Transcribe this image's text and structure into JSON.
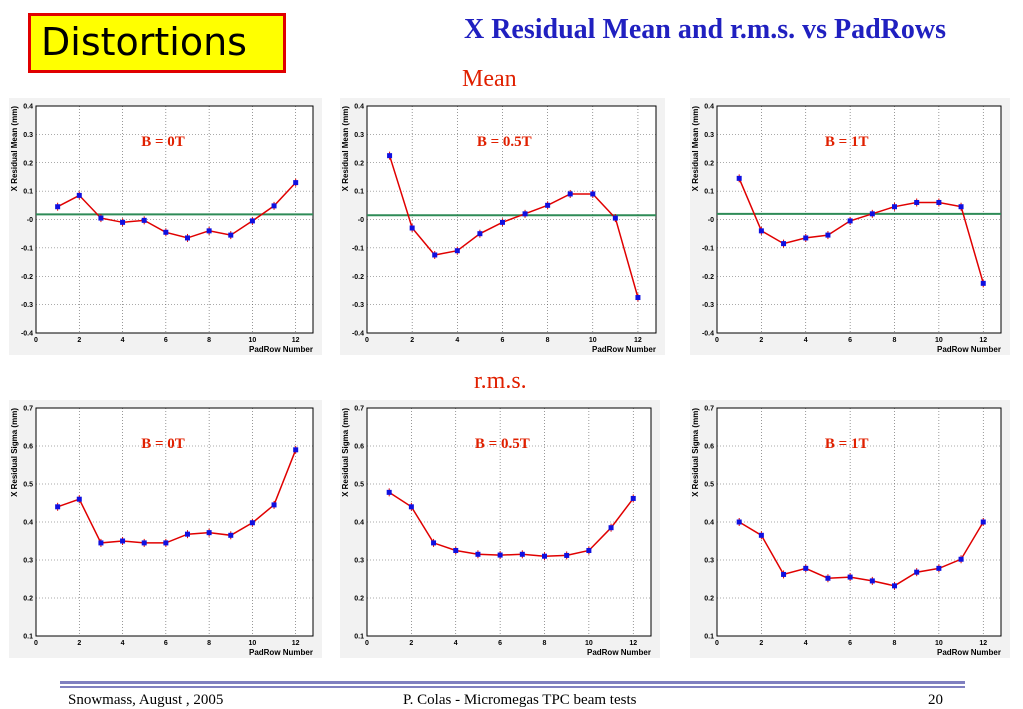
{
  "slide": {
    "title": "Distortions",
    "heading": "X Residual Mean and r.m.s. vs PadRows",
    "mean_label": "Mean",
    "rms_label": "r.m.s.",
    "footer_left": "Snowmass,  August , 2005",
    "footer_center": "P. Colas  -  Micromegas TPC beam tests",
    "page_number": "20"
  },
  "colors": {
    "title_box_bg": "#ffff00",
    "title_box_border": "#e00000",
    "heading": "#2020c0",
    "section_label": "#e02000",
    "field_label": "#e02000",
    "series_line": "#e00000",
    "marker": "#1010e0",
    "reference_line": "#2e8b57"
  },
  "chart_data": [
    {
      "type": "line",
      "annotation": "B = 0T",
      "xlabel": "PadRow Number",
      "ylabel": "X Residual Mean (mm)",
      "xlim": [
        0,
        12.8
      ],
      "ylim": [
        -0.4,
        0.4
      ],
      "xticks": [
        "0",
        "2",
        "4",
        "6",
        "8",
        "10",
        "12"
      ],
      "yticks": [
        "-0.4",
        "-0.3",
        "-0.2",
        "-0.1",
        "-0",
        "0.1",
        "0.2",
        "0.3",
        "0.4"
      ],
      "grid": true,
      "reference_y": 0.018,
      "x": [
        1,
        2,
        3,
        4,
        5,
        6,
        7,
        8,
        9,
        10,
        11,
        12
      ],
      "values": [
        0.045,
        0.085,
        0.005,
        -0.01,
        -0.003,
        -0.045,
        -0.065,
        -0.04,
        -0.055,
        -0.005,
        0.048,
        0.13
      ]
    },
    {
      "type": "line",
      "annotation": "B = 0.5T",
      "xlabel": "PadRow Number",
      "ylabel": "X Residual Mean (mm)",
      "xlim": [
        0,
        12.8
      ],
      "ylim": [
        -0.4,
        0.4
      ],
      "xticks": [
        "0",
        "2",
        "4",
        "6",
        "8",
        "10",
        "12"
      ],
      "yticks": [
        "-0.4",
        "-0.3",
        "-0.2",
        "-0.1",
        "-0",
        "0.1",
        "0.2",
        "0.3",
        "0.4"
      ],
      "grid": true,
      "reference_y": 0.015,
      "x": [
        1,
        2,
        3,
        4,
        5,
        6,
        7,
        8,
        9,
        10,
        11,
        12
      ],
      "values": [
        0.225,
        -0.03,
        -0.125,
        -0.11,
        -0.05,
        -0.01,
        0.02,
        0.05,
        0.09,
        0.09,
        0.005,
        -0.275
      ]
    },
    {
      "type": "line",
      "annotation": "B = 1T",
      "xlabel": "PadRow Number",
      "ylabel": "X Residual Mean (mm)",
      "xlim": [
        0,
        12.8
      ],
      "ylim": [
        -0.4,
        0.4
      ],
      "xticks": [
        "0",
        "2",
        "4",
        "6",
        "8",
        "10",
        "12"
      ],
      "yticks": [
        "-0.4",
        "-0.3",
        "-0.2",
        "-0.1",
        "-0",
        "0.1",
        "0.2",
        "0.3",
        "0.4"
      ],
      "grid": true,
      "reference_y": 0.02,
      "x": [
        1,
        2,
        3,
        4,
        5,
        6,
        7,
        8,
        9,
        10,
        11,
        12
      ],
      "values": [
        0.145,
        -0.04,
        -0.085,
        -0.065,
        -0.055,
        -0.005,
        0.02,
        0.045,
        0.06,
        0.06,
        0.045,
        -0.225
      ]
    },
    {
      "type": "line",
      "annotation": "B = 0T",
      "xlabel": "PadRow Number",
      "ylabel": "X Residual Sigma (mm)",
      "xlim": [
        0,
        12.8
      ],
      "ylim": [
        0.1,
        0.7
      ],
      "xticks": [
        "0",
        "2",
        "4",
        "6",
        "8",
        "10",
        "12"
      ],
      "yticks": [
        "0.1",
        "0.2",
        "0.3",
        "0.4",
        "0.5",
        "0.6",
        "0.7"
      ],
      "grid": true,
      "x": [
        1,
        2,
        3,
        4,
        5,
        6,
        7,
        8,
        9,
        10,
        11,
        12
      ],
      "values": [
        0.44,
        0.46,
        0.345,
        0.35,
        0.345,
        0.345,
        0.368,
        0.372,
        0.365,
        0.398,
        0.445,
        0.59
      ]
    },
    {
      "type": "line",
      "annotation": "B = 0.5T",
      "xlabel": "PadRow Number",
      "ylabel": "X Residual Sigma (mm)",
      "xlim": [
        0,
        12.8
      ],
      "ylim": [
        0.1,
        0.7
      ],
      "xticks": [
        "0",
        "2",
        "4",
        "6",
        "8",
        "10",
        "12"
      ],
      "yticks": [
        "0.1",
        "0.2",
        "0.3",
        "0.4",
        "0.5",
        "0.6",
        "0.7"
      ],
      "grid": true,
      "x": [
        1,
        2,
        3,
        4,
        5,
        6,
        7,
        8,
        9,
        10,
        11,
        12
      ],
      "values": [
        0.478,
        0.44,
        0.345,
        0.325,
        0.315,
        0.313,
        0.315,
        0.31,
        0.312,
        0.325,
        0.385,
        0.462
      ]
    },
    {
      "type": "line",
      "annotation": "B = 1T",
      "xlabel": "PadRow Number",
      "ylabel": "X Residual Sigma (mm)",
      "xlim": [
        0,
        12.8
      ],
      "ylim": [
        0.1,
        0.7
      ],
      "xticks": [
        "0",
        "2",
        "4",
        "6",
        "8",
        "10",
        "12"
      ],
      "yticks": [
        "0.1",
        "0.2",
        "0.3",
        "0.4",
        "0.5",
        "0.6",
        "0.7"
      ],
      "grid": true,
      "x": [
        1,
        2,
        3,
        4,
        5,
        6,
        7,
        8,
        9,
        10,
        11,
        12
      ],
      "values": [
        0.4,
        0.365,
        0.262,
        0.278,
        0.252,
        0.255,
        0.245,
        0.232,
        0.268,
        0.278,
        0.302,
        0.4
      ]
    }
  ]
}
